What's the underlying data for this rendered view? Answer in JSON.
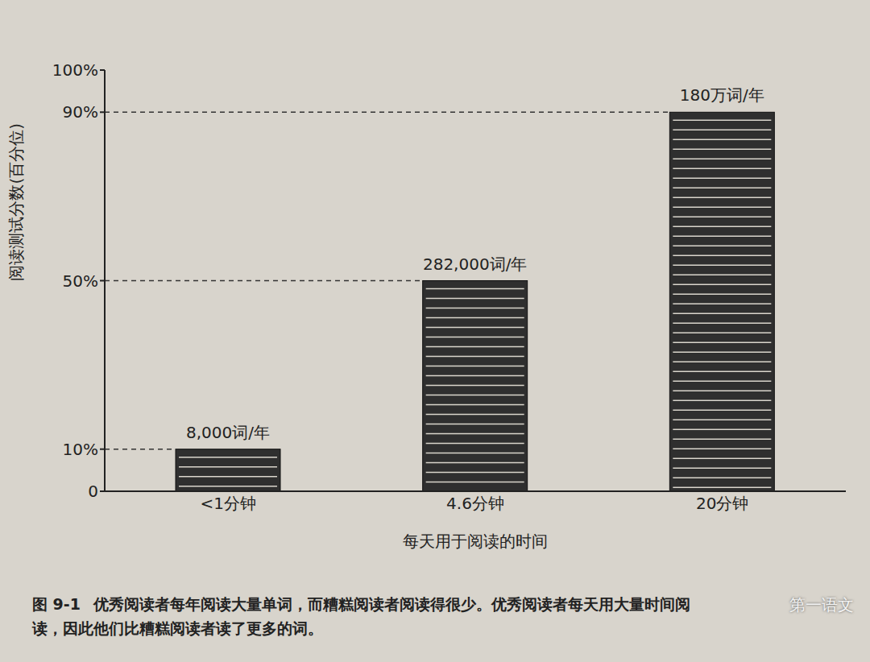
{
  "chart_data": {
    "type": "bar",
    "categories": [
      "<1分钟",
      "4.6分钟",
      "20分钟"
    ],
    "values": [
      10,
      50,
      90
    ],
    "bar_labels": [
      "8,000词/年",
      "282,000词/年",
      "180万词/年"
    ],
    "x_label": "每天用于阅读的时间",
    "y_label": "阅读测试分数(百分位)",
    "ylim": [
      0,
      100
    ],
    "yticks": [
      0,
      {
        "value": 10,
        "label": "10%"
      },
      {
        "value": 50,
        "label": "50%"
      },
      {
        "value": 90,
        "label": "90%"
      },
      {
        "value": 100,
        "label": "100%"
      }
    ],
    "grid": false,
    "color": "#2f2f2f"
  },
  "caption": {
    "label": "图 9-1",
    "text": "优秀阅读者每年阅读大量单词，而糟糕阅读者阅读得很少。优秀阅读者每天用大量时间阅读，因此他们比糟糕阅读者读了更多的词。"
  },
  "watermark": "第一语文"
}
